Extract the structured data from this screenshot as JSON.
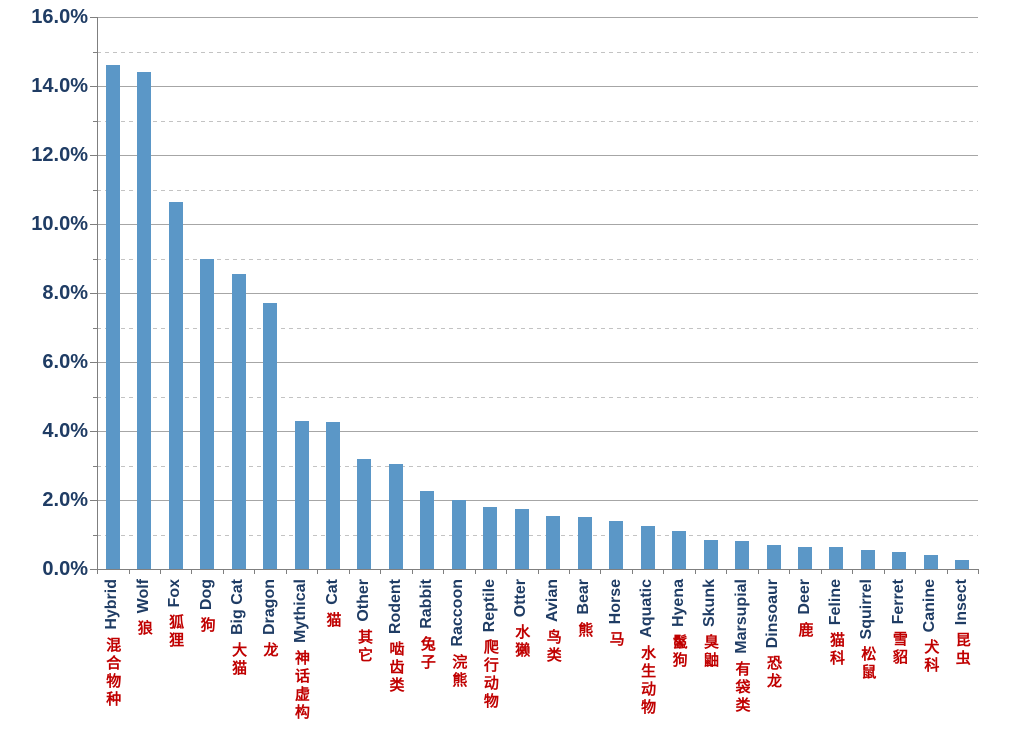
{
  "chart_data": {
    "type": "bar",
    "title": "",
    "xlabel": "",
    "ylabel": "",
    "values_unit": "%",
    "ylim": [
      0,
      16
    ],
    "ytick_step": 2,
    "ytick_labels": [
      "0.0%",
      "2.0%",
      "4.0%",
      "6.0%",
      "8.0%",
      "10.0%",
      "12.0%",
      "14.0%",
      "16.0%"
    ],
    "grid": "major solid horizontal lines at even percents, minor dashed lines at odd percents",
    "legend": "none",
    "categories": [
      "Hybrid",
      "Wolf",
      "Fox",
      "Dog",
      "Big Cat",
      "Dragon",
      "Mythical",
      "Cat",
      "Other",
      "Rodent",
      "Rabbit",
      "Raccoon",
      "Reptile",
      "Otter",
      "Avian",
      "Bear",
      "Horse",
      "Aquatic",
      "Hyena",
      "Skunk",
      "Marsupial",
      "Dinsoaur",
      "Deer",
      "Feline",
      "Squirrel",
      "Ferret",
      "Canine",
      "Insect"
    ],
    "categories_zh": [
      "混合物种",
      "狼",
      "狐狸",
      "狗",
      "大猫",
      "龙",
      "神话虚构",
      "猫",
      "其它",
      "啮齿类",
      "兔子",
      "浣熊",
      "爬行动物",
      "水獭",
      "鸟类",
      "熊",
      "马",
      "水生动物",
      "鬣狗",
      "臭鼬",
      "有袋类",
      "恐龙",
      "鹿",
      "猫科",
      "松鼠",
      "雪貂",
      "犬科",
      "昆虫"
    ],
    "values": [
      14.6,
      14.4,
      10.65,
      9.0,
      8.55,
      7.7,
      4.3,
      4.25,
      3.2,
      3.05,
      2.25,
      2.0,
      1.8,
      1.75,
      1.55,
      1.5,
      1.4,
      1.25,
      1.1,
      0.85,
      0.8,
      0.7,
      0.65,
      0.65,
      0.55,
      0.5,
      0.4,
      0.25
    ]
  },
  "colors": {
    "bar": "#5b97c7",
    "axis_text": "#1f3c64",
    "category_en_text": "#1f3c64",
    "category_zh_text": "#c00000",
    "grid_major": "#a6a6a6",
    "grid_minor": "#c3c3c3",
    "axis_line": "#7f7f7f",
    "background": "#ffffff"
  }
}
